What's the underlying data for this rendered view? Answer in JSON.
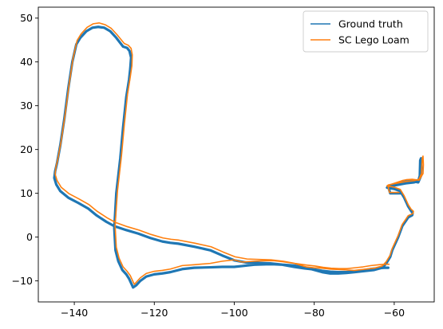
{
  "chart_data": {
    "type": "line",
    "title": "",
    "xlabel": "",
    "ylabel": "",
    "xlim": [
      -149,
      -50
    ],
    "ylim": [
      -14.8,
      52.5
    ],
    "xticks": [
      -140,
      -120,
      -100,
      -80,
      -60
    ],
    "yticks": [
      -10,
      0,
      10,
      20,
      30,
      40,
      50
    ],
    "grid": false,
    "legend_position": "top-right",
    "series": [
      {
        "name": "Ground truth",
        "color": "#1f77b4",
        "x": [
          -58.5,
          -61.0,
          -61.5,
          -58.0,
          -57.0,
          -55.5,
          -54.0,
          -53.3,
          -53.2,
          -53.3,
          -53.5,
          -53.6,
          -54.0,
          -55.0,
          -57.0,
          -60.0,
          -61.5,
          -61.8,
          -60.0,
          -58.5,
          -57.5,
          -56.5,
          -55.8,
          -55.4,
          -55.5,
          -56.5,
          -58.0,
          -59.0,
          -60.5,
          -61.0,
          -62.0,
          -63.0,
          -65.0,
          -68.0,
          -70.0,
          -72.0,
          -74.0,
          -76.0,
          -78.0,
          -80.0,
          -82.0,
          -85.0,
          -88.0,
          -90.0,
          -92.0,
          -95.0,
          -98.0,
          -100.0,
          -103.0,
          -106.0,
          -110.0,
          -113.0,
          -116.0,
          -118.0,
          -120.0,
          -122.0,
          -123.5,
          -124.5,
          -125.3,
          -125.8,
          -126.3,
          -127.0,
          -128.0,
          -129.0,
          -129.7,
          -130.0,
          -129.5,
          -128.5,
          -127.8,
          -127.0,
          -126.3,
          -126.0,
          -125.8,
          -126.2,
          -126.8,
          -127.8,
          -129.5,
          -131.0,
          -132.5,
          -134.0,
          -135.5,
          -137.0,
          -138.5,
          -139.5,
          -140.5,
          -141.5,
          -142.5,
          -143.5,
          -144.3,
          -144.8,
          -145.0,
          -144.5,
          -143.5,
          -141.5,
          -139.0,
          -136.5,
          -134.5,
          -132.0,
          -130.0,
          -127.0,
          -124.0,
          -121.0,
          -118.0,
          -116.0,
          -114.0,
          -110.0,
          -106.0,
          -103.0,
          -100.0,
          -97.0,
          -94.0,
          -91.0,
          -88.0,
          -85.0,
          -82.0,
          -80.0,
          -78.0,
          -76.0,
          -74.0,
          -72.0,
          -70.0,
          -68.0,
          -66.0,
          -64.0,
          -62.5,
          -61.5
        ],
        "y": [
          10.0,
          10.0,
          11.5,
          12.5,
          12.7,
          12.8,
          12.5,
          14.0,
          16.0,
          18.0,
          17.5,
          14.0,
          12.8,
          12.5,
          12.3,
          11.8,
          11.5,
          11.3,
          11.0,
          10.5,
          9.0,
          7.0,
          6.0,
          5.5,
          5.0,
          4.5,
          2.5,
          0.0,
          -3.0,
          -4.5,
          -6.0,
          -7.0,
          -7.5,
          -7.8,
          -8.0,
          -8.2,
          -8.3,
          -8.3,
          -8.0,
          -7.5,
          -7.0,
          -6.5,
          -6.3,
          -6.2,
          -6.2,
          -6.3,
          -6.6,
          -6.8,
          -6.8,
          -6.9,
          -7.0,
          -7.3,
          -8.0,
          -8.3,
          -8.5,
          -9.0,
          -10.0,
          -11.0,
          -11.5,
          -10.5,
          -9.5,
          -8.5,
          -7.5,
          -5.5,
          -3.0,
          2.0,
          10.0,
          18.0,
          25.0,
          32.0,
          36.0,
          38.5,
          41.0,
          42.5,
          43.2,
          43.5,
          45.5,
          47.0,
          47.8,
          48.0,
          47.8,
          47.0,
          45.5,
          44.0,
          40.0,
          34.0,
          27.0,
          21.0,
          17.0,
          15.0,
          13.5,
          12.0,
          10.5,
          9.0,
          7.8,
          6.5,
          5.0,
          3.5,
          2.5,
          1.6,
          0.8,
          -0.2,
          -1.0,
          -1.3,
          -1.5,
          -2.2,
          -3.0,
          -4.2,
          -5.3,
          -5.8,
          -5.9,
          -6.0,
          -6.3,
          -6.8,
          -7.2,
          -7.4,
          -7.7,
          -7.9,
          -8.0,
          -8.0,
          -7.8,
          -7.6,
          -7.3,
          -7.1,
          -7.0,
          -7.0
        ]
      },
      {
        "name": "SC Lego Loam",
        "color": "#ff7f0e",
        "x": [
          -58.8,
          -61.2,
          -61.6,
          -58.0,
          -57.0,
          -55.5,
          -53.8,
          -52.8,
          -52.7,
          -52.8,
          -53.0,
          -53.2,
          -53.8,
          -55.0,
          -57.0,
          -60.0,
          -61.5,
          -61.8,
          -60.0,
          -58.5,
          -57.5,
          -56.5,
          -55.8,
          -55.2,
          -55.3,
          -56.5,
          -58.0,
          -59.0,
          -60.5,
          -61.0,
          -62.0,
          -63.0,
          -65.0,
          -68.0,
          -70.0,
          -72.0,
          -74.0,
          -76.0,
          -78.0,
          -80.0,
          -82.0,
          -85.0,
          -88.0,
          -90.0,
          -92.0,
          -95.0,
          -98.0,
          -100.0,
          -103.0,
          -106.0,
          -110.0,
          -113.0,
          -116.0,
          -118.0,
          -120.0,
          -122.0,
          -123.5,
          -124.5,
          -125.0,
          -125.5,
          -126.0,
          -126.8,
          -127.8,
          -128.8,
          -129.5,
          -129.8,
          -129.2,
          -128.2,
          -127.5,
          -126.7,
          -126.0,
          -125.6,
          -125.5,
          -125.8,
          -126.5,
          -127.5,
          -129.3,
          -130.8,
          -132.3,
          -133.8,
          -135.3,
          -136.8,
          -138.3,
          -139.3,
          -140.3,
          -141.3,
          -142.3,
          -143.3,
          -144.1,
          -144.6,
          -144.8,
          -144.3,
          -143.3,
          -141.3,
          -138.8,
          -136.3,
          -134.3,
          -131.8,
          -129.8,
          -126.8,
          -123.8,
          -120.8,
          -117.8,
          -115.8,
          -113.8,
          -109.8,
          -105.8,
          -102.8,
          -99.8,
          -96.8,
          -93.8,
          -90.8,
          -87.8,
          -84.8,
          -81.8,
          -79.8,
          -77.8,
          -75.8,
          -73.8,
          -71.8,
          -69.8,
          -67.8,
          -65.8,
          -63.8,
          -62.3,
          -61.3
        ],
        "y": [
          10.2,
          10.2,
          11.8,
          12.9,
          13.1,
          13.2,
          13.0,
          14.5,
          16.5,
          18.5,
          18.0,
          14.5,
          13.2,
          12.9,
          12.7,
          12.2,
          11.9,
          11.7,
          11.4,
          10.9,
          9.4,
          7.4,
          6.4,
          5.9,
          5.4,
          4.9,
          2.9,
          0.4,
          -2.6,
          -4.1,
          -5.6,
          -6.6,
          -7.1,
          -7.4,
          -7.6,
          -7.5,
          -7.4,
          -7.3,
          -7.1,
          -7.0,
          -6.8,
          -6.0,
          -5.6,
          -5.4,
          -5.4,
          -5.5,
          -5.7,
          -5.2,
          -5.5,
          -6.0,
          -6.3,
          -6.5,
          -7.3,
          -7.6,
          -7.8,
          -8.3,
          -9.3,
          -10.3,
          -10.8,
          -9.8,
          -8.8,
          -7.8,
          -6.8,
          -4.8,
          -2.3,
          2.6,
          10.6,
          18.6,
          25.6,
          32.6,
          36.6,
          39.1,
          41.6,
          43.1,
          43.8,
          44.2,
          46.2,
          47.7,
          48.5,
          48.9,
          48.7,
          47.9,
          46.4,
          44.9,
          40.9,
          34.9,
          27.9,
          21.9,
          17.9,
          15.9,
          14.4,
          12.9,
          11.4,
          9.9,
          8.7,
          7.4,
          5.9,
          4.4,
          3.4,
          2.4,
          1.6,
          0.6,
          -0.2,
          -0.5,
          -0.7,
          -1.4,
          -2.2,
          -3.4,
          -4.5,
          -5.0,
          -5.1,
          -5.2,
          -5.5,
          -6.0,
          -6.4,
          -6.6,
          -6.9,
          -7.1,
          -7.2,
          -7.2,
          -7.0,
          -6.8,
          -6.5,
          -6.3,
          -6.2,
          -6.2
        ]
      }
    ]
  }
}
